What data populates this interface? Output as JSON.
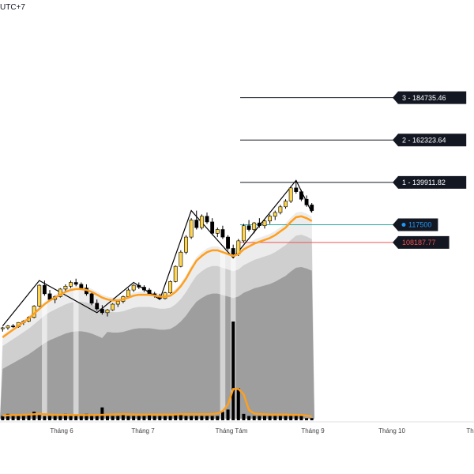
{
  "header": {
    "timezone": "UTC+7"
  },
  "colors": {
    "bg": "#ffffff",
    "candle_up": "#ffd54f",
    "candle_down": "#000000",
    "ma_line": "#ff9f1c",
    "zigzag": "#000000",
    "band_dark": "#9e9e9e",
    "band_mid": "#cfcfcf",
    "band_light": "#ececec",
    "current_price_line": "#26a69a",
    "stop_line": "#ef5350",
    "label_bg": "#131722",
    "stop_label_color": "#ef5350",
    "current_label_color": "#2196f3"
  },
  "chart_data": {
    "type": "candlestick",
    "x_axis": {
      "tick_labels": [
        "Tháng 6",
        "Tháng 7",
        "Tháng Tám",
        "Tháng 9",
        "Tháng 10",
        "Th"
      ]
    },
    "levels": [
      {
        "label": "3 - 184735.46",
        "value": 184735.46
      },
      {
        "label": "2 - 162323.64",
        "value": 162323.64
      },
      {
        "label": "1 - 139911.82",
        "value": 139911.82
      }
    ],
    "current_price": {
      "label": "117500",
      "value": 117500
    },
    "stop_level": {
      "label": "108187.77",
      "value": 108187.77
    },
    "price_range": [
      40000,
      185000
    ],
    "candles": [
      [
        62500,
        63500,
        61000,
        63000
      ],
      [
        63000,
        64500,
        62000,
        64000
      ],
      [
        64000,
        65000,
        63000,
        63500
      ],
      [
        63500,
        66000,
        63000,
        65800
      ],
      [
        65800,
        67000,
        64500,
        66500
      ],
      [
        66500,
        69000,
        66000,
        68500
      ],
      [
        68500,
        75000,
        68000,
        74500
      ],
      [
        74500,
        86000,
        74000,
        85500
      ],
      [
        85500,
        88000,
        80000,
        81000
      ],
      [
        81000,
        83000,
        77000,
        78000
      ],
      [
        78000,
        80000,
        76000,
        79500
      ],
      [
        79500,
        84000,
        79000,
        83500
      ],
      [
        83500,
        86000,
        82000,
        85000
      ],
      [
        85000,
        88000,
        84000,
        87000
      ],
      [
        87000,
        89000,
        85000,
        86000
      ],
      [
        86000,
        87000,
        83000,
        84000
      ],
      [
        84000,
        86000,
        80000,
        81000
      ],
      [
        81000,
        82000,
        75000,
        76000
      ],
      [
        76000,
        78000,
        72000,
        73000
      ],
      [
        73000,
        75000,
        70000,
        71000
      ],
      [
        71000,
        73000,
        69000,
        72500
      ],
      [
        72500,
        76000,
        72000,
        75500
      ],
      [
        75500,
        78000,
        74000,
        77000
      ],
      [
        77000,
        80000,
        76000,
        79500
      ],
      [
        79500,
        84000,
        79000,
        83000
      ],
      [
        83000,
        86000,
        82000,
        85500
      ],
      [
        85500,
        87000,
        83500,
        84500
      ],
      [
        84500,
        85500,
        82000,
        83000
      ],
      [
        83000,
        84000,
        80000,
        81000
      ],
      [
        81000,
        82000,
        79000,
        80000
      ],
      [
        80000,
        81000,
        78000,
        78500
      ],
      [
        78500,
        82000,
        78000,
        81500
      ],
      [
        81500,
        88000,
        81000,
        87500
      ],
      [
        87500,
        96000,
        87000,
        95500
      ],
      [
        95500,
        104000,
        95000,
        103000
      ],
      [
        103000,
        112000,
        102000,
        111000
      ],
      [
        111000,
        121000,
        110000,
        120000
      ],
      [
        120000,
        125000,
        115000,
        116000
      ],
      [
        116000,
        123000,
        115000,
        122000
      ],
      [
        122000,
        124000,
        118000,
        119000
      ],
      [
        119000,
        121000,
        112000,
        113000
      ],
      [
        113000,
        116000,
        111000,
        115000
      ],
      [
        115000,
        117000,
        110000,
        111000
      ],
      [
        111000,
        112000,
        104000,
        105000
      ],
      [
        105000,
        107000,
        100000,
        102000
      ],
      [
        102000,
        110000,
        101000,
        109000
      ],
      [
        109000,
        118000,
        108000,
        117000
      ],
      [
        117000,
        120000,
        114000,
        115000
      ],
      [
        115000,
        119000,
        113000,
        118500
      ],
      [
        118500,
        121000,
        116000,
        117000
      ],
      [
        117000,
        120000,
        115500,
        119500
      ],
      [
        119500,
        123000,
        118000,
        122000
      ],
      [
        122000,
        125000,
        120000,
        124000
      ],
      [
        124000,
        128000,
        123000,
        127000
      ],
      [
        127000,
        131000,
        126000,
        130000
      ],
      [
        130000,
        138000,
        129000,
        137000
      ],
      [
        137000,
        141000,
        134000,
        135000
      ],
      [
        135000,
        136000,
        130000,
        131000
      ],
      [
        131000,
        133000,
        127000,
        128000
      ],
      [
        128000,
        129000,
        124000,
        125000
      ]
    ],
    "ma": [
      58000,
      60000,
      62000,
      64000,
      66000,
      68000,
      70500,
      73000,
      75500,
      77500,
      79000,
      80500,
      82000,
      83000,
      83500,
      83500,
      83000,
      82000,
      80500,
      79000,
      78000,
      77500,
      77500,
      78000,
      79000,
      80000,
      80500,
      80500,
      80500,
      80000,
      79500,
      79500,
      80000,
      82000,
      85000,
      89000,
      94000,
      98500,
      101000,
      103000,
      104000,
      104000,
      103000,
      102000,
      101000,
      102000,
      104500,
      106000,
      107500,
      108500,
      109500,
      110500,
      112000,
      114000,
      116000,
      119000,
      121500,
      122000,
      121000,
      119500
    ],
    "zigzag": [
      [
        0,
        64000
      ],
      [
        7,
        88000
      ],
      [
        18,
        71000
      ],
      [
        25,
        87000
      ],
      [
        30,
        78000
      ],
      [
        36,
        125000
      ],
      [
        44,
        100000
      ],
      [
        56,
        141000
      ],
      [
        59,
        124000
      ]
    ],
    "volume": [
      2,
      3,
      2,
      2,
      2,
      3,
      4,
      3,
      2,
      2,
      2,
      2,
      3,
      2,
      2,
      2,
      3,
      2,
      2,
      6,
      2,
      2,
      2,
      3,
      2,
      2,
      2,
      2,
      3,
      2,
      2,
      2,
      2,
      3,
      3,
      2,
      2,
      2,
      2,
      2,
      2,
      2,
      4,
      5,
      46,
      15,
      3,
      2,
      2,
      2,
      2,
      2,
      2,
      2,
      2,
      2,
      2,
      2,
      1,
      1
    ],
    "volume_ma": [
      1.8,
      1.9,
      2,
      2,
      2.1,
      2.2,
      2.3,
      2.4,
      2.3,
      2.2,
      2.1,
      2.1,
      2.1,
      2,
      2,
      2,
      2,
      2,
      2,
      2.1,
      2.2,
      2.2,
      2.3,
      2.3,
      2.3,
      2.2,
      2.2,
      2.2,
      2.2,
      2.2,
      2.2,
      2.2,
      2.2,
      2.2,
      2.3,
      2.3,
      2.3,
      2.3,
      2.3,
      2.3,
      2.4,
      2.6,
      3.5,
      6,
      12,
      12,
      10,
      4,
      2.6,
      2.4,
      2.3,
      2.2,
      2.2,
      2.2,
      2.2,
      2.1,
      2.1,
      2,
      1.8,
      1.5
    ]
  }
}
